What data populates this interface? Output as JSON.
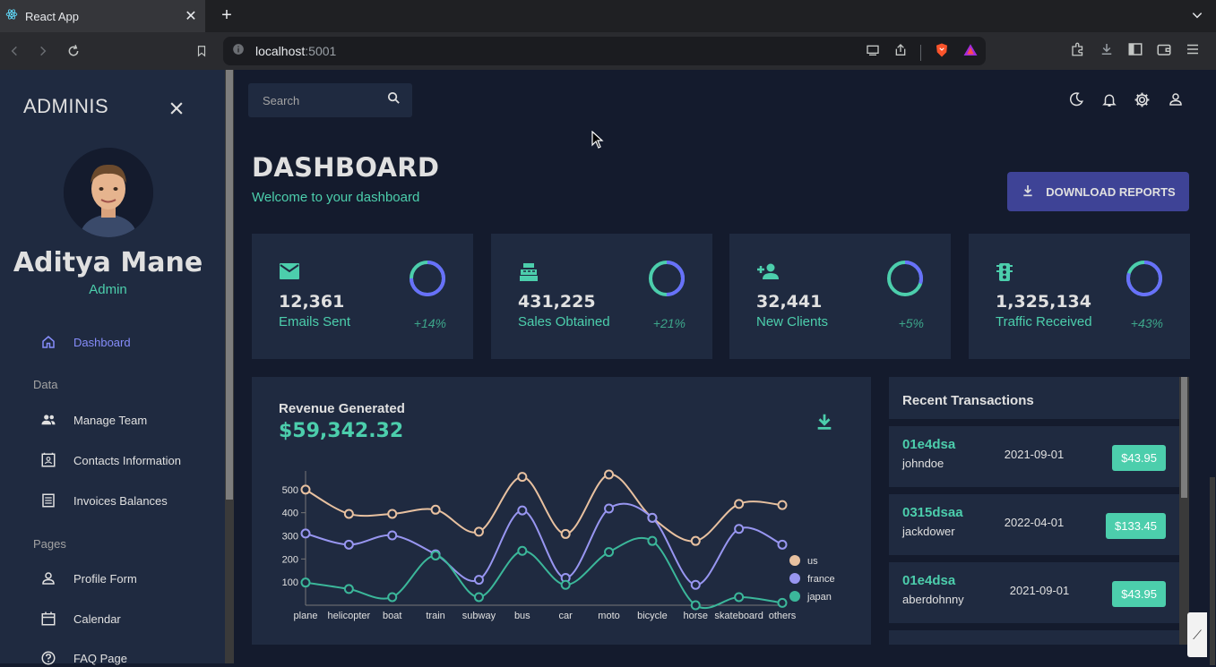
{
  "browser": {
    "tab_title": "React App",
    "url_host": "localhost",
    "url_port": ":5001"
  },
  "sidebar": {
    "brand": "ADMINIS",
    "user_name": "Aditya Mane",
    "user_role": "Admin",
    "items": [
      {
        "label": "Dashboard",
        "icon": "home-icon",
        "active": true
      },
      {
        "label": "Manage Team",
        "icon": "people-icon"
      },
      {
        "label": "Contacts Information",
        "icon": "contacts-icon"
      },
      {
        "label": "Invoices Balances",
        "icon": "receipt-icon"
      },
      {
        "label": "Profile Form",
        "icon": "person-icon"
      },
      {
        "label": "Calendar",
        "icon": "calendar-icon"
      },
      {
        "label": "FAQ Page",
        "icon": "help-icon"
      }
    ],
    "sections": [
      "Data",
      "Pages"
    ]
  },
  "topbar": {
    "search_placeholder": "Search"
  },
  "header": {
    "title": "DASHBOARD",
    "subtitle": "Welcome to your dashboard",
    "download_label": "DOWNLOAD REPORTS"
  },
  "stats": [
    {
      "value": "12,361",
      "label": "Emails Sent",
      "increase": "+14%",
      "progress": 0.75,
      "icon": "email-icon"
    },
    {
      "value": "431,225",
      "label": "Sales Obtained",
      "increase": "+21%",
      "progress": 0.5,
      "icon": "point-of-sale-icon"
    },
    {
      "value": "32,441",
      "label": "New Clients",
      "increase": "+5%",
      "progress": 0.3,
      "icon": "person-add-icon"
    },
    {
      "value": "1,325,134",
      "label": "Traffic Received",
      "increase": "+43%",
      "progress": 0.8,
      "icon": "traffic-icon"
    }
  ],
  "revenue": {
    "title": "Revenue Generated",
    "value": "$59,342.32"
  },
  "transactions": {
    "title": "Recent Transactions",
    "rows": [
      {
        "id": "01e4dsa",
        "user": "johndoe",
        "date": "2021-09-01",
        "cost": "$43.95"
      },
      {
        "id": "0315dsaa",
        "user": "jackdower",
        "date": "2022-04-01",
        "cost": "$133.45"
      },
      {
        "id": "01e4dsa",
        "user": "aberdohnny",
        "date": "2021-09-01",
        "cost": "$43.95"
      }
    ]
  },
  "colors": {
    "accent_green": "#4cceac",
    "accent_blue": "#6870fa",
    "primary_bg": "#141b2d",
    "panel_bg": "#1f2a40"
  },
  "chart_data": {
    "type": "line",
    "categories": [
      "plane",
      "helicopter",
      "boat",
      "train",
      "subway",
      "bus",
      "car",
      "moto",
      "bicycle",
      "horse",
      "skateboard",
      "others"
    ],
    "ylim": [
      0,
      600
    ],
    "yticks": [
      100,
      200,
      300,
      400,
      500
    ],
    "legend_position": "right",
    "series": [
      {
        "name": "us",
        "color": "#e8c1a0",
        "values": [
          500,
          395,
          395,
          413,
          318,
          555,
          308,
          565,
          378,
          278,
          438,
          433
        ]
      },
      {
        "name": "france",
        "color": "#9896f1",
        "values": [
          310,
          262,
          302,
          220,
          110,
          410,
          118,
          418,
          378,
          88,
          330,
          262
        ]
      },
      {
        "name": "japan",
        "color": "#3bb79a",
        "values": [
          98,
          70,
          35,
          215,
          35,
          235,
          88,
          230,
          278,
          0,
          35,
          10
        ]
      }
    ]
  }
}
